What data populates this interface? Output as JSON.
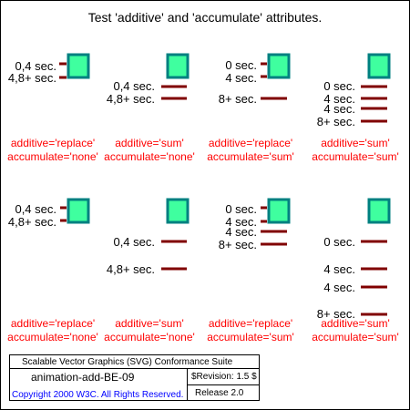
{
  "title": "Test 'additive' and 'accumulate' attributes.",
  "colors": {
    "bar": "#800000",
    "caption": "#ff0000",
    "box_fill": "#3fff9f",
    "box_stroke": "#008080",
    "frame_border": "#000000",
    "copyright": "#0000ff"
  },
  "grid": [
    {
      "additive": "additive='replace'",
      "accumulate": "accumulate='none'",
      "labels": [
        "0,4 sec.",
        "4,8+ sec."
      ]
    },
    {
      "additive": "additive='sum'",
      "accumulate": "accumulate='none'",
      "labels": [
        "0,4 sec.",
        "4,8+ sec."
      ]
    },
    {
      "additive": "additive='replace'",
      "accumulate": "accumulate='sum'",
      "labels": [
        "0 sec.",
        "4 sec.",
        "8+ sec."
      ]
    },
    {
      "additive": "additive='sum'",
      "accumulate": "accumulate='sum'",
      "labels": [
        "0 sec.",
        "4 sec.",
        "4 sec.",
        "8+ sec."
      ]
    },
    {
      "additive": "additive='replace'",
      "accumulate": "accumulate='none'",
      "labels": [
        "0,4 sec.",
        "4,8+ sec."
      ]
    },
    {
      "additive": "additive='sum'",
      "accumulate": "accumulate='none'",
      "labels": [
        "0,4 sec.",
        "4,8+ sec."
      ]
    },
    {
      "additive": "additive='replace'",
      "accumulate": "accumulate='sum'",
      "labels": [
        "0 sec.",
        "4 sec.",
        "4 sec.",
        "8+ sec."
      ]
    },
    {
      "additive": "additive='sum'",
      "accumulate": "accumulate='sum'",
      "labels": [
        "0 sec.",
        "4 sec.",
        "4 sec.",
        "8+ sec."
      ]
    }
  ],
  "footer": {
    "suite": "Scalable Vector Graphics (SVG) Conformance Suite",
    "test_name": "animation-add-BE-09",
    "revision": "$Revision: 1.5 $",
    "copyright": "Copyright 2000 W3C. All Rights Reserved.",
    "release": "Release 2.0"
  }
}
